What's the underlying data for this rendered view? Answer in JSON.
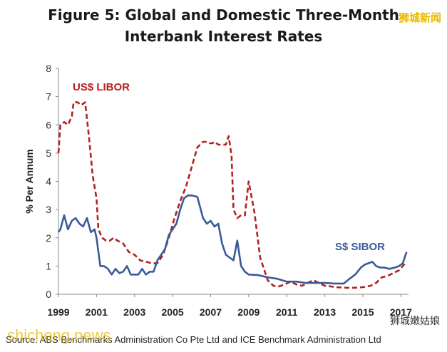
{
  "title_line1": "Figure 5: Global and Domestic Three-Month",
  "title_line2": "Interbank Interest Rates",
  "watermark_top": "狮城新闻",
  "watermark_bottom_left": "shicheng.news",
  "watermark_bottom_right": "狮城嫩姑娘",
  "source": "Source: ABS Benchmarks Administration Co Pte Ltd and ICE Benchmark Administration Ltd",
  "chart_data": {
    "type": "line",
    "title": "Figure 5: Global and Domestic Three-Month Interbank Interest Rates",
    "xlabel": "",
    "ylabel": "% Per Annum",
    "xlim": [
      1999,
      2017.4
    ],
    "ylim": [
      0,
      8
    ],
    "xticks": [
      1999,
      2001,
      2003,
      2005,
      2007,
      2009,
      2011,
      2013,
      2015,
      2017
    ],
    "yticks": [
      0,
      1,
      2,
      3,
      4,
      5,
      6,
      7,
      8
    ],
    "grid": false,
    "colors": {
      "us_libor": "#b22222",
      "s_sibor": "#3a5a9a"
    },
    "series": [
      {
        "name": "US$ LIBOR",
        "style": "dashed",
        "x": [
          1999.0,
          1999.1,
          1999.3,
          1999.5,
          1999.7,
          1999.8,
          2000.0,
          2000.2,
          2000.4,
          2000.6,
          2000.8,
          2001.0,
          2001.1,
          2001.3,
          2001.5,
          2001.7,
          2001.9,
          2002.1,
          2002.4,
          2002.7,
          2003.0,
          2003.3,
          2003.6,
          2003.9,
          2004.2,
          2004.5,
          2004.8,
          2005.1,
          2005.4,
          2005.7,
          2006.0,
          2006.3,
          2006.6,
          2006.8,
          2006.95,
          2007.1,
          2007.2,
          2007.4,
          2007.6,
          2007.8,
          2007.95,
          2008.1,
          2008.2,
          2008.4,
          2008.6,
          2008.8,
          2009.0,
          2009.3,
          2009.6,
          2010.0,
          2010.3,
          2010.6,
          2010.9,
          2011.2,
          2011.5,
          2011.8,
          2012.1,
          2012.4,
          2012.7,
          2013.0,
          2013.3,
          2013.6,
          2013.9,
          2014.2,
          2014.5,
          2014.8,
          2015.1,
          2015.4,
          2015.7,
          2016.0,
          2016.3,
          2016.6,
          2016.9,
          2017.1,
          2017.3
        ],
        "values": [
          5.0,
          6.0,
          6.1,
          6.0,
          6.3,
          6.8,
          6.8,
          6.7,
          6.8,
          5.6,
          4.2,
          3.4,
          2.3,
          2.0,
          1.9,
          1.9,
          2.0,
          1.9,
          1.8,
          1.5,
          1.4,
          1.2,
          1.15,
          1.1,
          1.1,
          1.4,
          2.0,
          2.7,
          3.3,
          3.8,
          4.5,
          5.2,
          5.4,
          5.4,
          5.35,
          5.35,
          5.4,
          5.3,
          5.3,
          5.3,
          5.6,
          4.9,
          3.0,
          2.7,
          2.8,
          2.8,
          4.0,
          2.9,
          1.3,
          0.5,
          0.3,
          0.28,
          0.35,
          0.45,
          0.35,
          0.3,
          0.4,
          0.5,
          0.4,
          0.3,
          0.28,
          0.25,
          0.24,
          0.23,
          0.23,
          0.24,
          0.26,
          0.3,
          0.4,
          0.6,
          0.65,
          0.75,
          0.85,
          1.0,
          1.15
        ]
      },
      {
        "name": "S$ SIBOR",
        "style": "solid",
        "x": [
          1999.0,
          1999.1,
          1999.3,
          1999.5,
          1999.7,
          1999.9,
          2000.1,
          2000.3,
          2000.5,
          2000.7,
          2000.9,
          2001.0,
          2001.2,
          2001.4,
          2001.6,
          2001.8,
          2002.0,
          2002.2,
          2002.4,
          2002.6,
          2002.8,
          2003.0,
          2003.2,
          2003.4,
          2003.6,
          2003.8,
          2004.0,
          2004.2,
          2004.4,
          2004.6,
          2004.8,
          2005.0,
          2005.2,
          2005.4,
          2005.6,
          2005.8,
          2006.0,
          2006.3,
          2006.6,
          2006.8,
          2007.0,
          2007.2,
          2007.4,
          2007.6,
          2007.8,
          2008.0,
          2008.2,
          2008.4,
          2008.6,
          2008.8,
          2009.0,
          2009.5,
          2010.0,
          2010.5,
          2011.0,
          2011.5,
          2012.0,
          2012.5,
          2013.0,
          2013.5,
          2014.0,
          2014.3,
          2014.6,
          2014.9,
          2015.1,
          2015.3,
          2015.5,
          2015.7,
          2015.9,
          2016.1,
          2016.4,
          2016.7,
          2016.9,
          2017.1,
          2017.3
        ],
        "values": [
          2.2,
          2.3,
          2.8,
          2.3,
          2.6,
          2.7,
          2.5,
          2.4,
          2.7,
          2.2,
          2.3,
          2.0,
          1.0,
          1.0,
          0.9,
          0.7,
          0.9,
          0.75,
          0.8,
          1.0,
          0.7,
          0.7,
          0.7,
          0.9,
          0.7,
          0.8,
          0.8,
          1.2,
          1.4,
          1.6,
          2.1,
          2.3,
          2.5,
          3.0,
          3.4,
          3.5,
          3.5,
          3.45,
          2.7,
          2.5,
          2.6,
          2.4,
          2.5,
          1.8,
          1.4,
          1.3,
          1.2,
          1.9,
          1.0,
          0.8,
          0.7,
          0.68,
          0.6,
          0.55,
          0.45,
          0.45,
          0.4,
          0.4,
          0.4,
          0.38,
          0.38,
          0.55,
          0.7,
          0.95,
          1.05,
          1.1,
          1.15,
          1.0,
          0.95,
          0.95,
          0.9,
          0.95,
          1.0,
          1.1,
          1.5
        ]
      }
    ]
  }
}
